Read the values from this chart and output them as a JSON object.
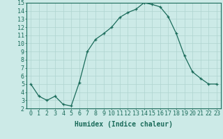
{
  "x": [
    0,
    1,
    2,
    3,
    4,
    5,
    6,
    7,
    8,
    9,
    10,
    11,
    12,
    13,
    14,
    15,
    16,
    17,
    18,
    19,
    20,
    21,
    22,
    23
  ],
  "y": [
    5,
    3.5,
    3.0,
    3.5,
    2.5,
    2.3,
    5.2,
    9.0,
    10.5,
    11.2,
    12.0,
    13.2,
    13.8,
    14.2,
    15.0,
    14.8,
    14.5,
    13.3,
    11.2,
    8.5,
    6.5,
    5.7,
    5.0,
    5.0
  ],
  "xlabel": "Humidex (Indice chaleur)",
  "ylim": [
    2,
    15
  ],
  "xlim": [
    -0.5,
    23.5
  ],
  "yticks": [
    2,
    3,
    4,
    5,
    6,
    7,
    8,
    9,
    10,
    11,
    12,
    13,
    14,
    15
  ],
  "xticks": [
    0,
    1,
    2,
    3,
    4,
    5,
    6,
    7,
    8,
    9,
    10,
    11,
    12,
    13,
    14,
    15,
    16,
    17,
    18,
    19,
    20,
    21,
    22,
    23
  ],
  "line_color": "#1a6b5a",
  "bg_color": "#cceae7",
  "grid_color": "#aed4d0",
  "xlabel_fontsize": 7,
  "tick_fontsize": 6
}
